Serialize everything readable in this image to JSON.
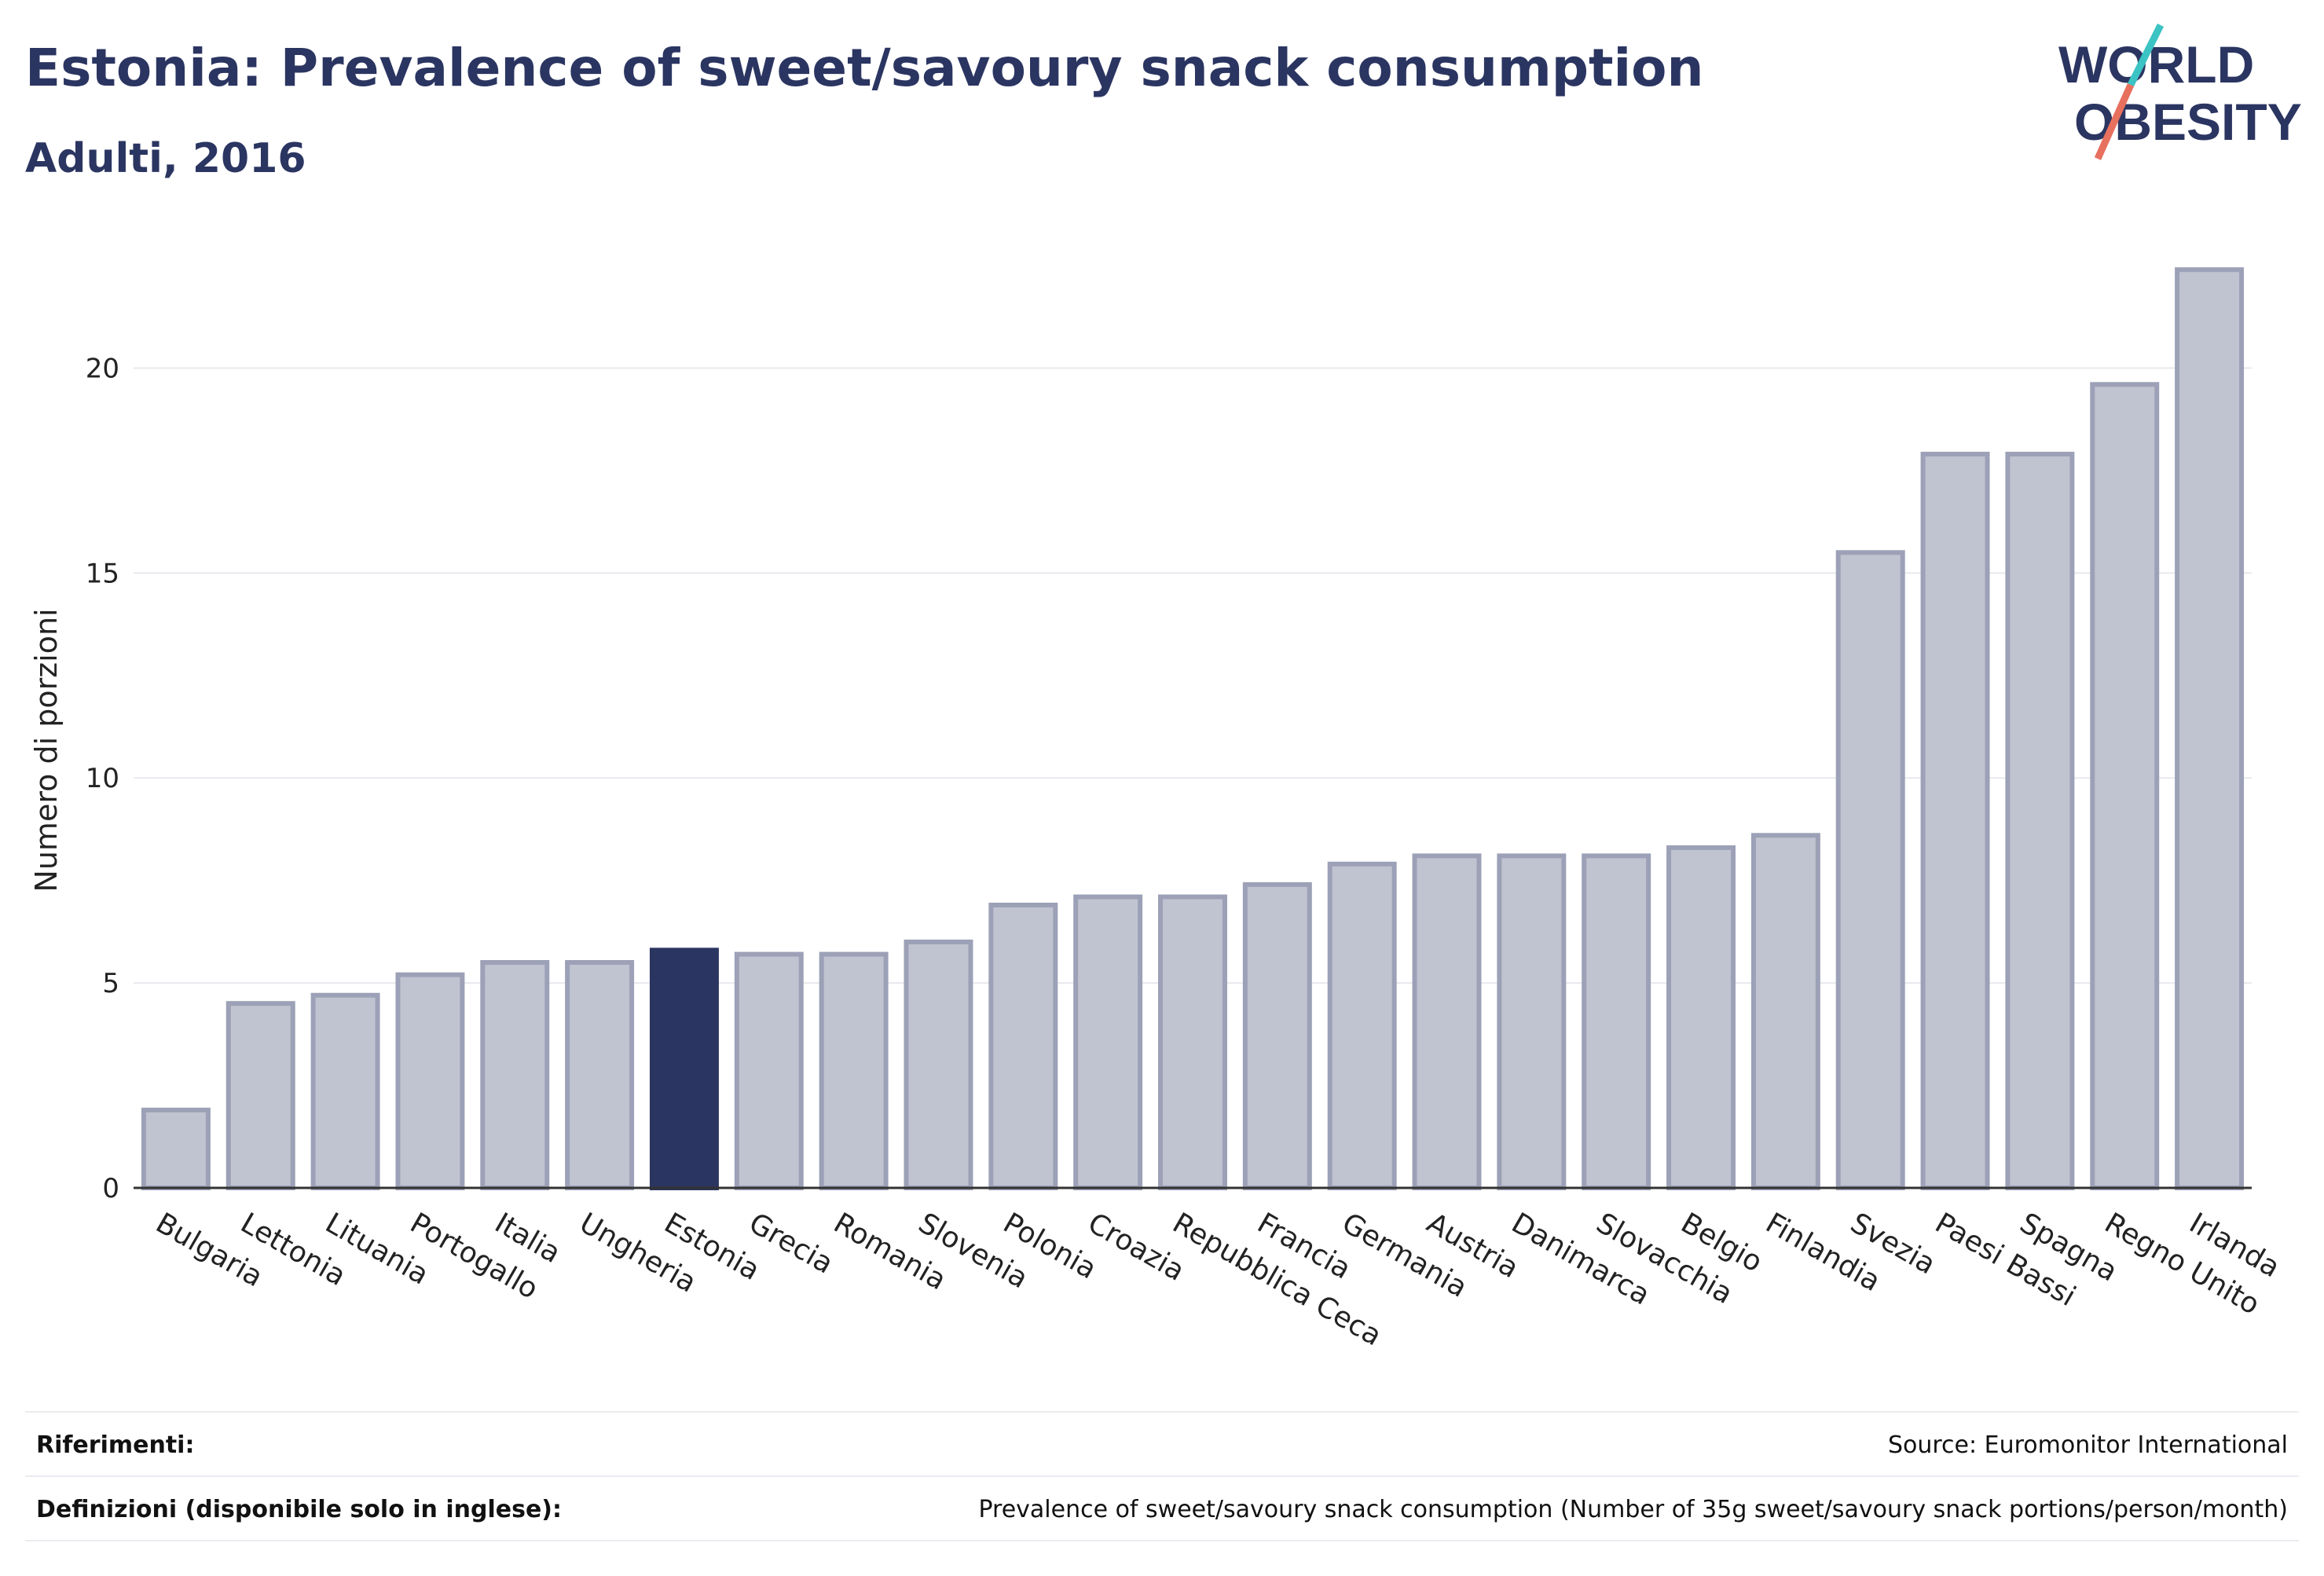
{
  "header": {
    "title": "Estonia: Prevalence of sweet/savoury snack consumption",
    "subtitle": "Adulti, 2016"
  },
  "logo": {
    "line1": "WORLD",
    "line2": "OBESITY",
    "accent_teal": "#3cc3c3",
    "accent_coral": "#e8705f"
  },
  "colors": {
    "bar": "#c0c3d0",
    "bar_stroke": "#9ca1b7",
    "highlight": "#2b3561",
    "text": "#2b3561",
    "grid": "#e8e9ee"
  },
  "chart_data": {
    "type": "bar",
    "title": "Estonia: Prevalence of sweet/savoury snack consumption",
    "subtitle": "Adulti, 2016",
    "xlabel": "",
    "ylabel": "Numero di porzioni",
    "ylim": [
      0,
      22.5
    ],
    "yticks": [
      0,
      5,
      10,
      15,
      20
    ],
    "grid": true,
    "highlight": "Estonia",
    "categories": [
      "Bulgaria",
      "Lettonia",
      "Lituania",
      "Portogallo",
      "Italia",
      "Ungheria",
      "Estonia",
      "Grecia",
      "Romania",
      "Slovenia",
      "Polonia",
      "Croazia",
      "Repubblica Ceca",
      "Francia",
      "Germania",
      "Austria",
      "Danimarca",
      "Slovacchia",
      "Belgio",
      "Finlandia",
      "Svezia",
      "Paesi Bassi",
      "Spagna",
      "Regno Unito",
      "Irlanda"
    ],
    "values": [
      1.9,
      4.5,
      4.7,
      5.2,
      5.5,
      5.5,
      5.8,
      5.7,
      5.7,
      6.0,
      6.9,
      7.1,
      7.1,
      7.4,
      7.9,
      8.1,
      8.1,
      8.1,
      8.3,
      8.6,
      15.5,
      17.9,
      17.9,
      19.6,
      22.4
    ]
  },
  "footer": {
    "references_label": "Riferimenti:",
    "references_value": "Source: Euromonitor International",
    "definitions_label": "Definizioni (disponibile solo in inglese):",
    "definitions_value": "Prevalence of sweet/savoury snack consumption (Number of 35g sweet/savoury snack portions/person/month)"
  }
}
